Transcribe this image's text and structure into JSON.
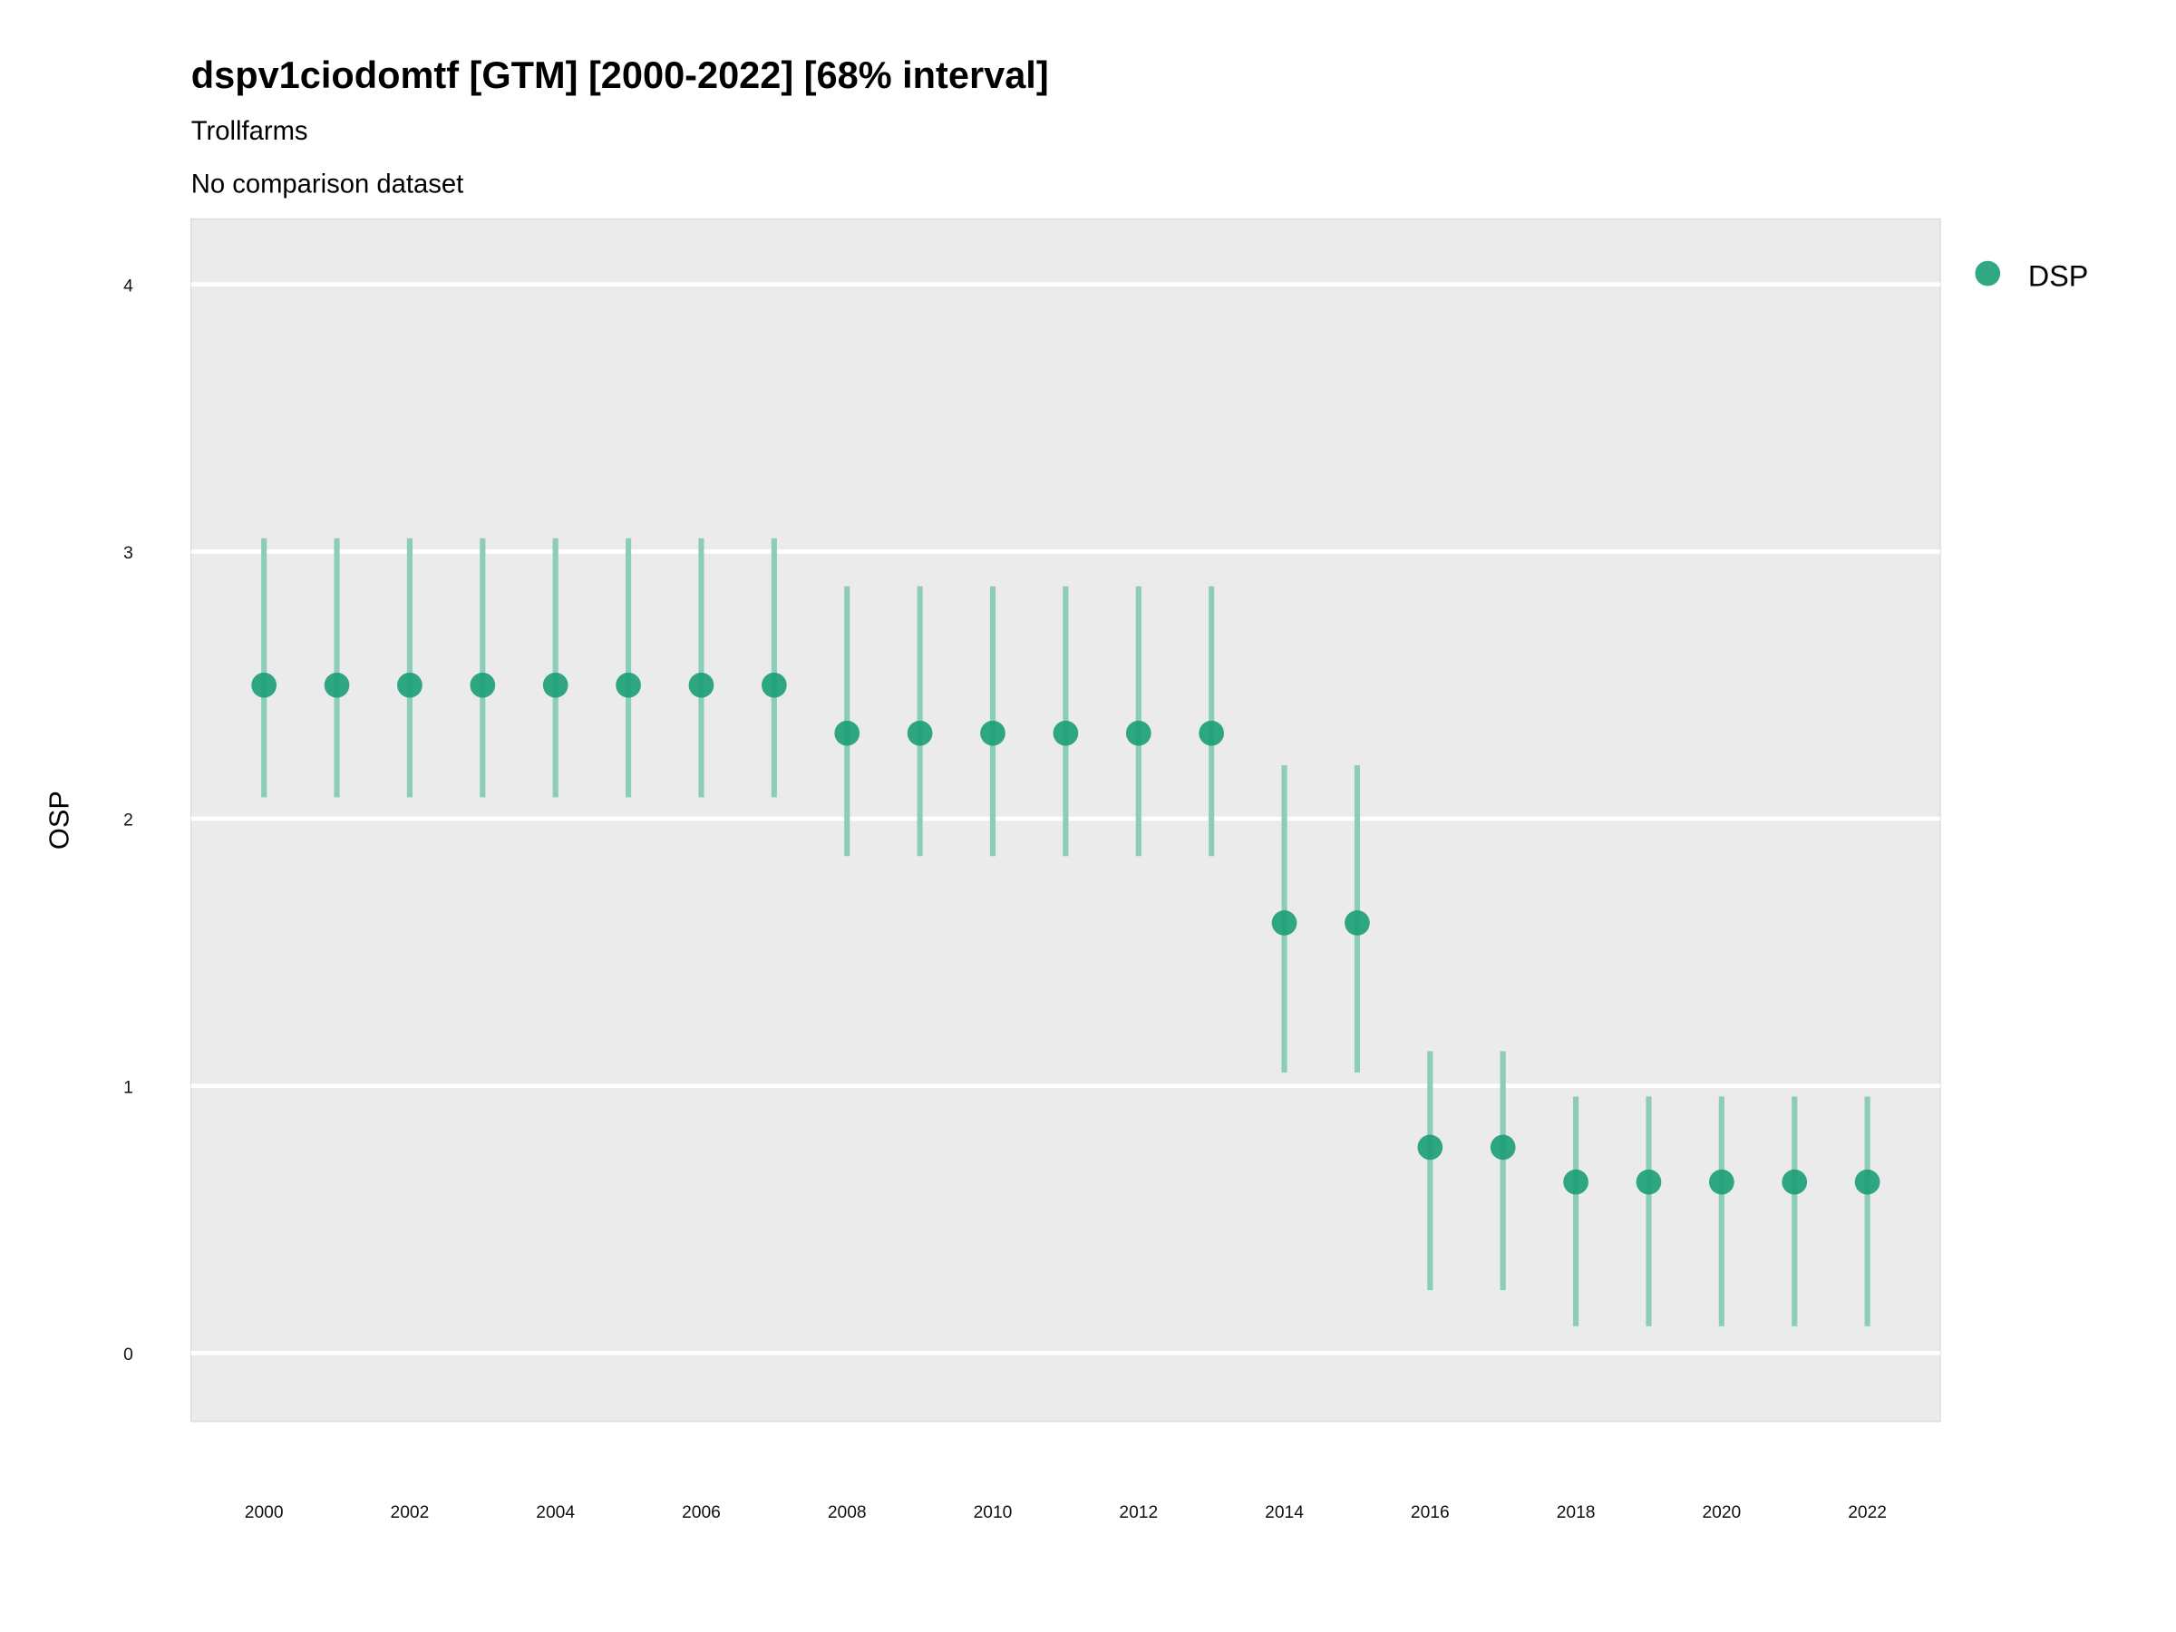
{
  "chart_data": {
    "type": "scatter",
    "title": "dspv1ciodomtf [GTM] [2000-2022] [68% interval]",
    "subtitle": "Trollfarms",
    "caption": "No comparison dataset",
    "xlabel": "",
    "ylabel": "OSP",
    "xlim": [
      1999,
      2023
    ],
    "ylim": [
      -0.256,
      4.245
    ],
    "x_ticks": [
      2000,
      2002,
      2004,
      2006,
      2008,
      2010,
      2012,
      2014,
      2016,
      2018,
      2020,
      2022
    ],
    "y_ticks": [
      0,
      1,
      2,
      3,
      4
    ],
    "grid": "horizontal major",
    "legend_position": "right",
    "colors": {
      "point": "#1a9e77",
      "interval": "#8ccdb8",
      "panel": "#ebebeb",
      "grid": "#ffffff"
    },
    "series": [
      {
        "name": "DSP",
        "x": [
          2000,
          2001,
          2002,
          2003,
          2004,
          2005,
          2006,
          2007,
          2008,
          2009,
          2010,
          2011,
          2012,
          2013,
          2014,
          2015,
          2016,
          2017,
          2018,
          2019,
          2020,
          2021,
          2022
        ],
        "y": [
          2.5,
          2.5,
          2.5,
          2.5,
          2.5,
          2.5,
          2.5,
          2.5,
          2.32,
          2.32,
          2.32,
          2.32,
          2.32,
          2.32,
          1.61,
          1.61,
          0.77,
          0.77,
          0.64,
          0.64,
          0.64,
          0.64,
          0.64
        ],
        "lower": [
          2.08,
          2.08,
          2.08,
          2.08,
          2.08,
          2.08,
          2.08,
          2.08,
          1.86,
          1.86,
          1.86,
          1.86,
          1.86,
          1.86,
          1.05,
          1.05,
          0.235,
          0.235,
          0.1,
          0.1,
          0.1,
          0.1,
          0.1
        ],
        "upper": [
          3.05,
          3.05,
          3.05,
          3.05,
          3.05,
          3.05,
          3.05,
          3.05,
          2.87,
          2.87,
          2.87,
          2.87,
          2.87,
          2.87,
          2.2,
          2.2,
          1.13,
          1.13,
          0.96,
          0.96,
          0.96,
          0.96,
          0.96
        ]
      }
    ]
  }
}
